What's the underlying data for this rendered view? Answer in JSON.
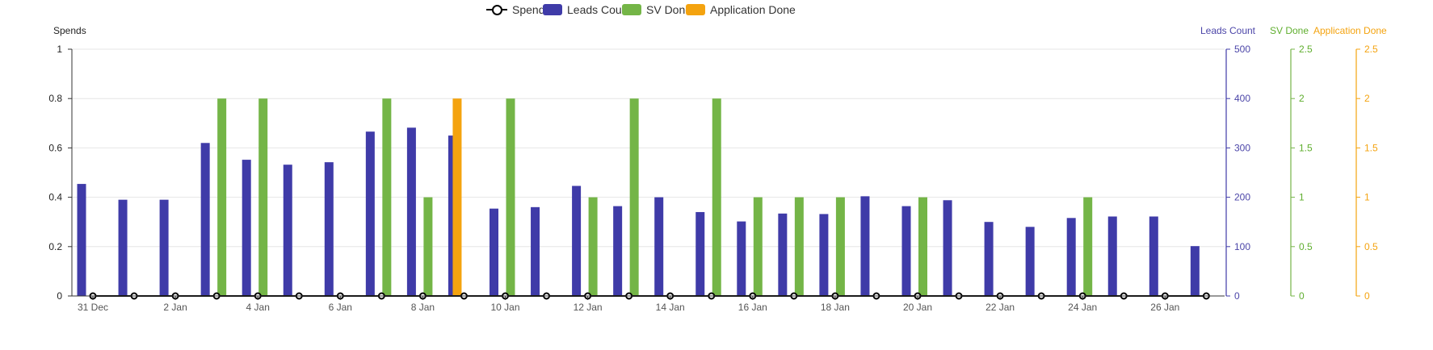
{
  "legend": {
    "spend": "Spend",
    "leads": "Leads Count",
    "sv": "SV Done",
    "app": "Application Done"
  },
  "colors": {
    "spend": "#000000",
    "leads": "#3f3ba8",
    "sv": "#74b547",
    "app": "#f4a30f",
    "axis_leads_text": "#4b45a8",
    "axis_sv_text": "#5fae2e",
    "axis_app_text": "#f4a30f"
  },
  "chart_data": {
    "type": "bar",
    "x_tick_labels": [
      "31 Dec",
      "2 Jan",
      "4 Jan",
      "6 Jan",
      "8 Jan",
      "10 Jan",
      "12 Jan",
      "14 Jan",
      "16 Jan",
      "18 Jan",
      "20 Jan",
      "22 Jan",
      "24 Jan",
      "26 Jan"
    ],
    "grid": true,
    "legend_position": "top-center",
    "axes": {
      "left": {
        "title": "Spends",
        "range": [
          0,
          1
        ],
        "ticks": [
          "0",
          "0.2",
          "0.4",
          "0.6",
          "0.8",
          "1"
        ]
      },
      "leads": {
        "title": "Leads Count",
        "range": [
          0,
          500
        ],
        "ticks": [
          "0",
          "100",
          "200",
          "300",
          "400",
          "500"
        ]
      },
      "sv": {
        "title": "SV Done",
        "range": [
          0,
          2.5
        ],
        "ticks": [
          "0",
          "0.5",
          "1",
          "1.5",
          "2",
          "2.5"
        ]
      },
      "app": {
        "title": "Application Done",
        "range": [
          0,
          2.5
        ],
        "ticks": [
          "0",
          "0.5",
          "1",
          "1.5",
          "2",
          "2.5"
        ]
      }
    },
    "series": [
      {
        "name": "Spend",
        "type": "line",
        "axis": "left",
        "values": [
          0,
          0,
          0,
          0,
          0,
          0,
          0,
          0,
          0,
          0,
          0,
          0,
          0,
          0,
          0,
          0,
          0,
          0,
          0,
          0,
          0,
          0,
          0,
          0,
          0,
          0,
          0,
          0
        ]
      },
      {
        "name": "Leads Count",
        "type": "bar",
        "axis": "leads",
        "values": [
          227,
          195,
          195,
          310,
          276,
          266,
          271,
          333,
          341,
          325,
          177,
          180,
          223,
          182,
          200,
          170,
          151,
          167,
          166,
          202,
          182,
          194,
          150,
          140,
          158,
          161,
          161,
          101
        ]
      },
      {
        "name": "SV Done",
        "type": "bar",
        "axis": "sv",
        "values": [
          0,
          0,
          0,
          2,
          2,
          0,
          0,
          2,
          1,
          0,
          2,
          0,
          1,
          2,
          0,
          2,
          1,
          1,
          1,
          0,
          1,
          0,
          0,
          0,
          1,
          0,
          0,
          0
        ]
      },
      {
        "name": "Application Done",
        "type": "bar",
        "axis": "app",
        "values": [
          0,
          0,
          0,
          0,
          0,
          0,
          0,
          0,
          0,
          2,
          0,
          0,
          0,
          0,
          0,
          0,
          0,
          0,
          0,
          0,
          0,
          0,
          0,
          0,
          0,
          0,
          0,
          0
        ]
      }
    ]
  }
}
